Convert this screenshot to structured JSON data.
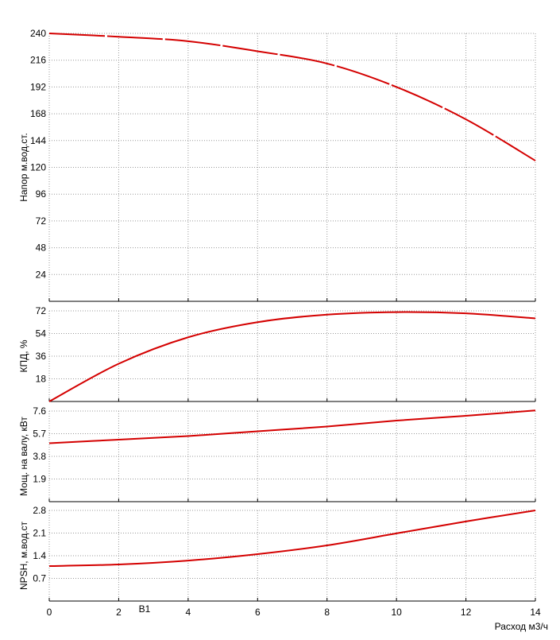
{
  "chart_data": [
    {
      "type": "line",
      "ylabel": "Напор м.вод.ст.",
      "x": [
        0,
        2,
        4,
        6,
        8,
        10,
        12,
        14
      ],
      "xlim": [
        0,
        14
      ],
      "xticks": [
        0,
        2,
        4,
        6,
        8,
        10,
        12,
        14
      ],
      "series": [
        {
          "color": "#d40000",
          "values": [
            240,
            237,
            233,
            224,
            213,
            192,
            163,
            126
          ]
        }
      ],
      "ylim": [
        0,
        240
      ],
      "yticks": [
        24,
        48,
        72,
        96,
        120,
        144,
        168,
        192,
        216,
        240
      ],
      "grid": true,
      "dashed": true
    },
    {
      "type": "line",
      "ylabel": "КПД, %",
      "x": [
        0,
        2,
        4,
        6,
        8,
        10,
        12,
        14
      ],
      "xlim": [
        0,
        14
      ],
      "xticks": [
        0,
        2,
        4,
        6,
        8,
        10,
        12,
        14
      ],
      "series": [
        {
          "color": "#d40000",
          "values": [
            0,
            30,
            51,
            63,
            69,
            71,
            70,
            66
          ]
        }
      ],
      "ylim": [
        0,
        72
      ],
      "yticks": [
        18,
        36,
        54,
        72
      ],
      "grid": true
    },
    {
      "type": "line",
      "ylabel": "Мощ. на валу, кВт",
      "x": [
        0,
        2,
        4,
        6,
        8,
        10,
        12,
        14
      ],
      "xlim": [
        0,
        14
      ],
      "xticks": [
        0,
        2,
        4,
        6,
        8,
        10,
        12,
        14
      ],
      "series": [
        {
          "color": "#d40000",
          "values": [
            4.9,
            5.2,
            5.5,
            5.9,
            6.3,
            6.8,
            7.2,
            7.65
          ]
        }
      ],
      "ylim": [
        0,
        7.6
      ],
      "yticks": [
        1.9,
        3.8,
        5.7,
        7.6
      ],
      "grid": true
    },
    {
      "type": "line",
      "ylabel": "NPSH, м.вод.ст",
      "xlabel": "Расход м3/ч",
      "x": [
        0,
        2,
        4,
        6,
        8,
        10,
        12,
        14
      ],
      "xlim": [
        0,
        14
      ],
      "xticks": [
        0,
        2,
        4,
        6,
        8,
        10,
        12,
        14
      ],
      "series": [
        {
          "color": "#d40000",
          "values": [
            1.08,
            1.13,
            1.25,
            1.45,
            1.72,
            2.09,
            2.46,
            2.8
          ]
        }
      ],
      "ylim": [
        0,
        2.8
      ],
      "yticks": [
        0.7,
        1.4,
        2.1,
        2.8
      ],
      "grid": true,
      "legend_label": "B1"
    }
  ]
}
